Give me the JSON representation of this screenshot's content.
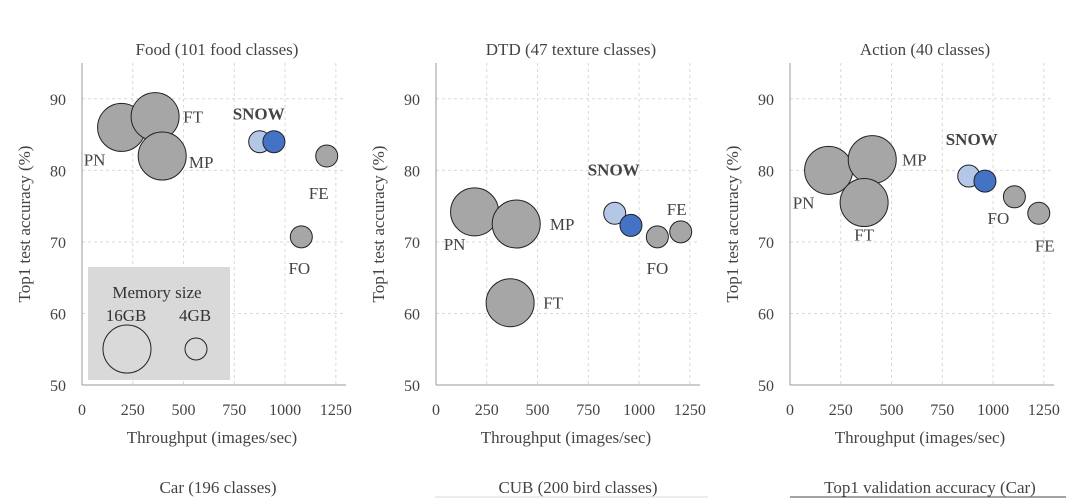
{
  "bottom_titles": [
    "Car (196 classes)",
    "CUB (200 bird classes)",
    "Top1 validation accuracy (Car)"
  ],
  "legend": {
    "title": "Memory size",
    "big_label": "16GB",
    "small_label": "4GB",
    "fill": "#d9d9d9"
  },
  "colors": {
    "baseline": "#a6a6a6",
    "snow_light": "#b4c7e7",
    "snow_dark": "#4472c4",
    "text": "#444444"
  },
  "chart_data": [
    {
      "type": "scatter",
      "title": "Food (101 food classes)",
      "xlabel": "Throughput (images/sec)",
      "ylabel": "Top1 test accuracy (%)",
      "xlim": [
        0,
        1300
      ],
      "ylim": [
        50,
        95
      ],
      "xticks": [
        0,
        250,
        500,
        750,
        1000,
        1250
      ],
      "yticks": [
        50,
        60,
        70,
        80,
        90
      ],
      "grid": true,
      "legend_placement": "bottom-left",
      "points": [
        {
          "label": "PN",
          "x": 195,
          "y": 86,
          "memory": "16GB"
        },
        {
          "label": "FT",
          "x": 360,
          "y": 87.5,
          "memory": "16GB"
        },
        {
          "label": "MP",
          "x": 395,
          "y": 82,
          "memory": "16GB"
        },
        {
          "label": "FE",
          "x": 1205,
          "y": 82,
          "memory": "4GB"
        },
        {
          "label": "FO",
          "x": 1080,
          "y": 70.7,
          "memory": "4GB"
        },
        {
          "label": "",
          "x": 875,
          "y": 84,
          "memory": "4GB",
          "style": "snow_light"
        },
        {
          "label": "",
          "x": 945,
          "y": 84,
          "memory": "4GB",
          "style": "snow_dark"
        }
      ],
      "snow_label": "SNOW"
    },
    {
      "type": "scatter",
      "title": "DTD (47 texture classes)",
      "xlabel": "Throughput (images/sec)",
      "ylabel": "Top1 test accuracy (%)",
      "xlim": [
        0,
        1300
      ],
      "ylim": [
        50,
        95
      ],
      "xticks": [
        0,
        250,
        500,
        750,
        1000,
        1250
      ],
      "yticks": [
        50,
        60,
        70,
        80,
        90
      ],
      "grid": true,
      "points": [
        {
          "label": "PN",
          "x": 190,
          "y": 74.2,
          "memory": "16GB"
        },
        {
          "label": "MP",
          "x": 395,
          "y": 72.5,
          "memory": "16GB"
        },
        {
          "label": "FT",
          "x": 365,
          "y": 61.5,
          "memory": "16GB"
        },
        {
          "label": "FO",
          "x": 1090,
          "y": 70.7,
          "memory": "4GB"
        },
        {
          "label": "FE",
          "x": 1205,
          "y": 71.4,
          "memory": "4GB"
        },
        {
          "label": "",
          "x": 880,
          "y": 74,
          "memory": "4GB",
          "style": "snow_light"
        },
        {
          "label": "",
          "x": 960,
          "y": 72.3,
          "memory": "4GB",
          "style": "snow_dark"
        }
      ],
      "snow_label": "SNOW"
    },
    {
      "type": "scatter",
      "title": "Action (40 classes)",
      "xlabel": "Throughput (images/sec)",
      "ylabel": "Top1 test accuracy (%)",
      "xlim": [
        0,
        1300
      ],
      "ylim": [
        50,
        95
      ],
      "xticks": [
        0,
        250,
        500,
        750,
        1000,
        1250
      ],
      "yticks": [
        50,
        60,
        70,
        80,
        90
      ],
      "grid": true,
      "points": [
        {
          "label": "PN",
          "x": 190,
          "y": 80,
          "memory": "16GB"
        },
        {
          "label": "MP",
          "x": 405,
          "y": 81.5,
          "memory": "16GB"
        },
        {
          "label": "FT",
          "x": 365,
          "y": 75.5,
          "memory": "16GB"
        },
        {
          "label": "FO",
          "x": 1105,
          "y": 76.3,
          "memory": "4GB"
        },
        {
          "label": "FE",
          "x": 1225,
          "y": 74,
          "memory": "4GB"
        },
        {
          "label": "",
          "x": 880,
          "y": 79.2,
          "memory": "4GB",
          "style": "snow_light"
        },
        {
          "label": "",
          "x": 960,
          "y": 78.5,
          "memory": "4GB",
          "style": "snow_dark"
        }
      ],
      "snow_label": "SNOW"
    }
  ]
}
